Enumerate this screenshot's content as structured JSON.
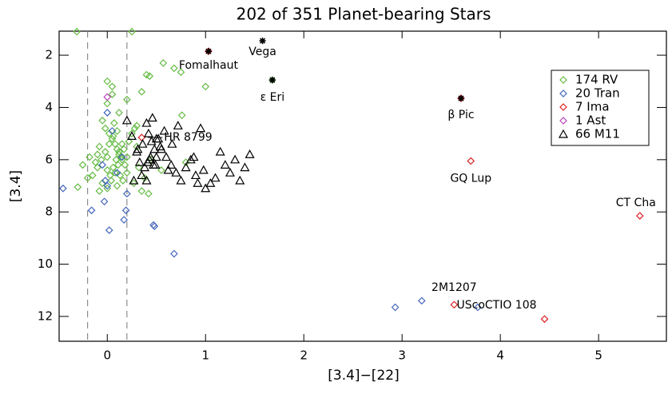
{
  "chart_data": {
    "type": "scatter",
    "title": "202 of 351 Planet-bearing Stars",
    "xlabel": "[3.4]−[22]",
    "ylabel": "[3.4]",
    "xlim": [
      -0.49,
      5.69
    ],
    "ylim": [
      12.95,
      1.08
    ],
    "xticks": [
      0,
      1,
      2,
      3,
      4,
      5
    ],
    "yticks": [
      2,
      4,
      6,
      8,
      10,
      12
    ],
    "vlines": [
      -0.2,
      0.2
    ],
    "legend": "upper right",
    "series": [
      {
        "name": "174 RV",
        "color": "#66bb44",
        "marker": "diamond",
        "x": [
          -0.31,
          0.25,
          0.57,
          0.4,
          0.43,
          0.68,
          0.75,
          1.0,
          0.0,
          0.05,
          0.05,
          0.0,
          -0.3,
          -0.2,
          0.2,
          0.27,
          0.35,
          0.42,
          0.38,
          0.55,
          0.8,
          0.76,
          0.3,
          0.35,
          0.2,
          1.68,
          -0.05,
          -0.02,
          0.02,
          0.05,
          0.08,
          0.1,
          0.12,
          0.15,
          0.18,
          -0.08,
          -0.1,
          -0.12,
          0.0,
          0.03,
          0.06,
          0.09,
          0.12,
          0.15,
          -0.05,
          0.0,
          0.04,
          0.08,
          0.11,
          0.14,
          0.17,
          0.22,
          0.25,
          0.28,
          -0.1,
          -0.06,
          -0.02,
          0.02,
          0.06,
          0.1,
          0.13,
          0.16,
          -0.15,
          -0.08,
          0.0,
          0.07,
          0.12,
          0.2,
          0.32,
          0.45,
          -0.25,
          -0.18,
          0.1,
          0.3
        ],
        "y": [
          1.1,
          1.1,
          2.3,
          2.75,
          2.8,
          2.5,
          2.65,
          3.2,
          3.0,
          3.2,
          3.5,
          3.85,
          7.05,
          6.7,
          6.5,
          6.9,
          7.2,
          7.3,
          6.7,
          6.4,
          6.1,
          4.3,
          4.7,
          3.4,
          3.7,
          2.95,
          4.5,
          4.8,
          5.0,
          5.2,
          5.4,
          5.6,
          5.8,
          6.0,
          6.2,
          5.5,
          5.8,
          6.1,
          6.4,
          6.6,
          6.3,
          6.0,
          5.7,
          5.4,
          6.9,
          7.1,
          6.8,
          6.5,
          6.2,
          5.9,
          5.6,
          5.3,
          5.0,
          4.8,
          6.3,
          6.0,
          5.7,
          5.4,
          5.1,
          4.9,
          6.6,
          6.8,
          6.6,
          7.2,
          5.9,
          4.6,
          4.2,
          5.9,
          6.3,
          6.0,
          6.2,
          5.9,
          7.0,
          5.5
        ]
      },
      {
        "name": "20 Tran",
        "color": "#4466bb",
        "marker": "diamond",
        "x": [
          -0.45,
          -0.16,
          0.02,
          0.19,
          0.17,
          0.0,
          -0.05,
          0.0,
          -0.03,
          0.2,
          0.05,
          -0.02,
          0.1,
          0.15,
          0.48,
          0.47,
          0.68,
          2.93,
          3.2,
          3.77
        ],
        "y": [
          7.1,
          7.94,
          8.7,
          7.94,
          8.3,
          4.2,
          6.2,
          7.0,
          7.6,
          7.3,
          4.9,
          6.8,
          6.5,
          5.9,
          8.55,
          8.5,
          9.6,
          11.65,
          11.4,
          11.65
        ]
      },
      {
        "name": "7 Ima",
        "color": "#dd2222",
        "marker": "diamond",
        "x": [
          1.03,
          3.6,
          0.35,
          3.7,
          5.42,
          3.53,
          4.45
        ],
        "y": [
          1.85,
          3.65,
          5.15,
          6.05,
          8.15,
          11.55,
          12.1
        ]
      },
      {
        "name": "1 Ast",
        "color": "#bb44bb",
        "marker": "diamond",
        "x": [
          0.0
        ],
        "y": [
          3.6
        ]
      },
      {
        "name": "66 M11",
        "color": "#000000",
        "marker": "triangle",
        "x": [
          0.2,
          0.25,
          0.3,
          0.33,
          0.36,
          0.4,
          0.42,
          0.45,
          0.48,
          0.5,
          0.38,
          0.41,
          0.44,
          0.47,
          0.52,
          0.55,
          0.6,
          0.65,
          0.7,
          0.75,
          0.8,
          0.85,
          0.9,
          0.95,
          1.0,
          1.05,
          1.1,
          1.15,
          1.2,
          1.25,
          1.3,
          1.35,
          1.4,
          1.45,
          0.35,
          0.4,
          0.46,
          0.5,
          0.58,
          0.62,
          0.72,
          0.88,
          0.92,
          0.98,
          0.27,
          0.31,
          0.43,
          0.49,
          0.54,
          0.66
        ],
        "y": [
          4.5,
          5.1,
          5.7,
          6.1,
          5.4,
          4.6,
          5.0,
          5.3,
          5.6,
          5.9,
          6.3,
          6.1,
          5.9,
          6.2,
          5.2,
          5.6,
          5.9,
          6.2,
          6.5,
          6.8,
          6.3,
          6.0,
          6.6,
          4.8,
          7.1,
          6.9,
          6.7,
          5.7,
          6.2,
          6.5,
          6.0,
          6.8,
          6.3,
          5.8,
          6.6,
          6.8,
          4.4,
          5.2,
          4.9,
          6.4,
          4.7,
          5.9,
          6.9,
          6.4,
          6.8,
          5.6,
          6.0,
          6.2,
          5.5,
          5.4
        ]
      }
    ],
    "annotations": [
      {
        "text": "Fomalhaut",
        "x": 1.03,
        "y": 1.85,
        "marker": "asterisk"
      },
      {
        "text": "Vega",
        "x": 1.58,
        "y": 1.45,
        "marker": "asterisk"
      },
      {
        "text": "ε Eri",
        "x": 1.68,
        "y": 2.95,
        "marker": "asterisk"
      },
      {
        "text": "β Pic",
        "x": 3.6,
        "y": 3.65,
        "marker": "asterisk"
      },
      {
        "text": "HR 8799",
        "x": 0.35,
        "y": 5.15
      },
      {
        "text": "GQ Lup",
        "x": 3.7,
        "y": 6.05
      },
      {
        "text": "CT Cha",
        "x": 5.42,
        "y": 8.15
      },
      {
        "text": "2M1207",
        "x": 3.53,
        "y": 11.55
      },
      {
        "text": "UScoCTIO 108",
        "x": 4.45,
        "y": 12.1
      }
    ]
  }
}
